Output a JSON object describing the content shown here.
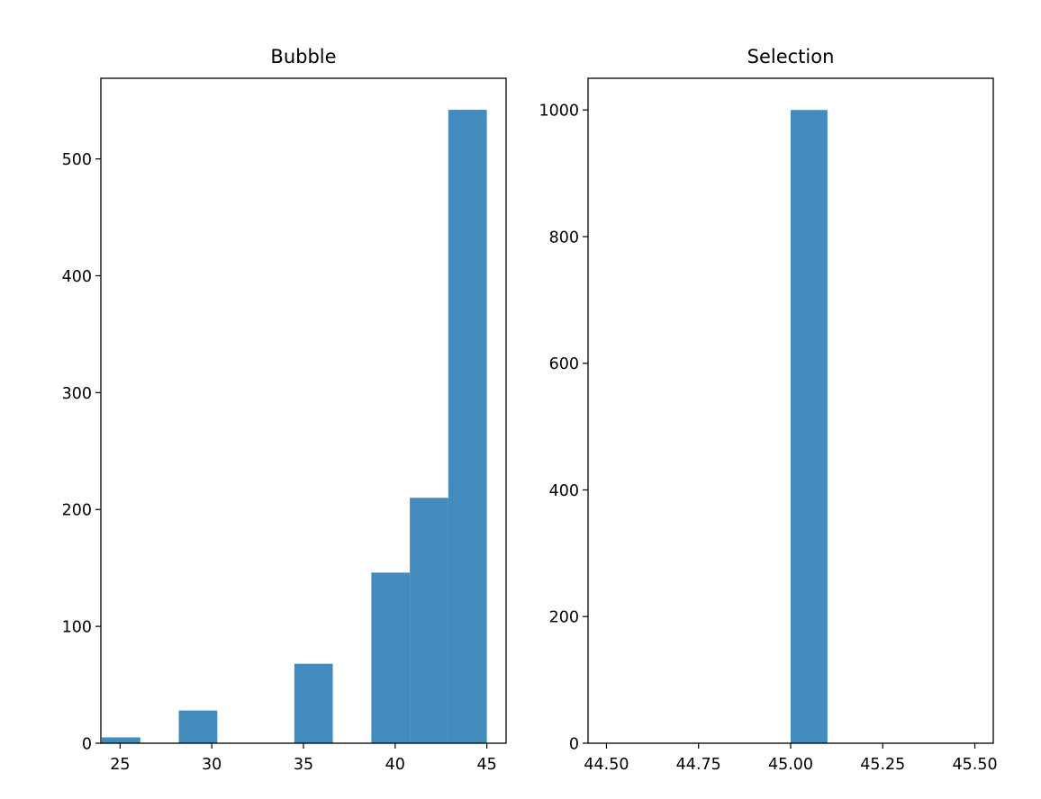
{
  "chart_data": [
    {
      "type": "bar",
      "title": "Bubble",
      "xlabel": "",
      "ylabel": "",
      "xlim": [
        23.95,
        46.05
      ],
      "ylim": [
        0,
        569
      ],
      "grid": false,
      "bins": [
        {
          "x0": 24.0,
          "x1": 26.1,
          "count": 5
        },
        {
          "x0": 26.1,
          "x1": 28.2,
          "count": 0
        },
        {
          "x0": 28.2,
          "x1": 30.3,
          "count": 28
        },
        {
          "x0": 30.3,
          "x1": 32.4,
          "count": 0
        },
        {
          "x0": 32.4,
          "x1": 34.5,
          "count": 0
        },
        {
          "x0": 34.5,
          "x1": 36.6,
          "count": 68
        },
        {
          "x0": 36.6,
          "x1": 38.7,
          "count": 0
        },
        {
          "x0": 38.7,
          "x1": 40.8,
          "count": 146
        },
        {
          "x0": 40.8,
          "x1": 42.9,
          "count": 210
        },
        {
          "x0": 42.9,
          "x1": 45.0,
          "count": 542
        }
      ],
      "xticks": [
        25,
        30,
        35,
        40,
        45
      ],
      "yticks": [
        0,
        100,
        200,
        300,
        400,
        500
      ],
      "bar_color": "#448bbd"
    },
    {
      "type": "bar",
      "title": "Selection",
      "xlabel": "",
      "ylabel": "",
      "xlim": [
        44.45,
        45.55
      ],
      "ylim": [
        0,
        1050
      ],
      "grid": false,
      "bins": [
        {
          "x0": 44.5,
          "x1": 44.6,
          "count": 0
        },
        {
          "x0": 44.6,
          "x1": 44.7,
          "count": 0
        },
        {
          "x0": 44.7,
          "x1": 44.8,
          "count": 0
        },
        {
          "x0": 44.8,
          "x1": 44.9,
          "count": 0
        },
        {
          "x0": 44.9,
          "x1": 45.0,
          "count": 0
        },
        {
          "x0": 45.0,
          "x1": 45.1,
          "count": 1000
        },
        {
          "x0": 45.1,
          "x1": 45.2,
          "count": 0
        },
        {
          "x0": 45.2,
          "x1": 45.3,
          "count": 0
        },
        {
          "x0": 45.3,
          "x1": 45.4,
          "count": 0
        },
        {
          "x0": 45.4,
          "x1": 45.5,
          "count": 0
        }
      ],
      "xticks": [
        44.5,
        44.75,
        45.0,
        45.25,
        45.5
      ],
      "xtick_labels": [
        "44.50",
        "44.75",
        "45.00",
        "45.25",
        "45.50"
      ],
      "yticks": [
        0,
        200,
        400,
        600,
        800,
        1000
      ],
      "bar_color": "#448bbd"
    }
  ]
}
